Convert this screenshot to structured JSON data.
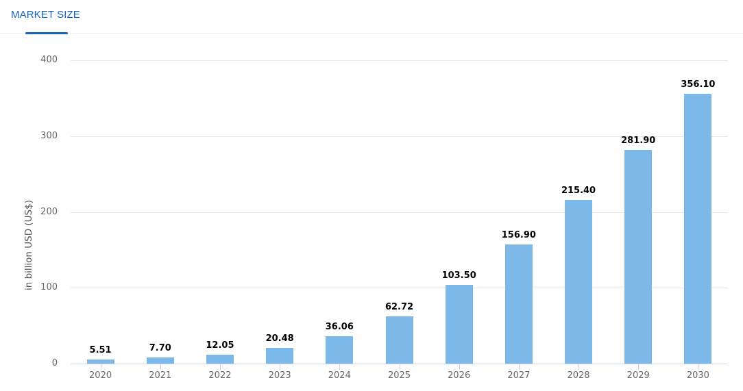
{
  "header": {
    "tab_label": "MARKET SIZE",
    "accent_color": "#1565c0"
  },
  "chart_data": {
    "type": "bar",
    "title": "MARKET SIZE",
    "xlabel": "",
    "ylabel": "in billion USD (US$)",
    "ylim": [
      0,
      400
    ],
    "yticks": [
      "0",
      "100",
      "200",
      "300",
      "400"
    ],
    "grid": true,
    "legend": "none",
    "bar_color": "#7cb9e8",
    "categories": [
      "2020",
      "2021",
      "2022",
      "2023",
      "2024",
      "2025",
      "2026",
      "2027",
      "2028",
      "2029",
      "2030"
    ],
    "values": [
      5.51,
      7.7,
      12.05,
      20.48,
      36.06,
      62.72,
      103.5,
      156.9,
      215.4,
      281.9,
      356.1
    ],
    "data_labels": [
      "5.51",
      "7.70",
      "12.05",
      "20.48",
      "36.06",
      "62.72",
      "103.50",
      "156.90",
      "215.40",
      "281.90",
      "356.10"
    ]
  }
}
